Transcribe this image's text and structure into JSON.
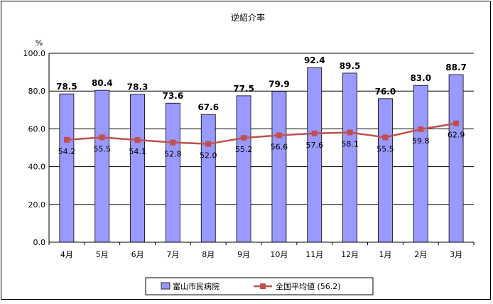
{
  "chart_data": {
    "type": "bar",
    "title": "逆紹介率",
    "ylabel": "%",
    "xlabel": "",
    "ylim": [
      0,
      100
    ],
    "yticks": [
      "0.0",
      "20.0",
      "40.0",
      "60.0",
      "80.0",
      "100.0"
    ],
    "categories": [
      "4月",
      "5月",
      "6月",
      "7月",
      "8月",
      "9月",
      "10月",
      "11月",
      "12月",
      "1月",
      "2月",
      "3月"
    ],
    "series": [
      {
        "name": "富山市民病院",
        "type": "bar",
        "color": "#9999ff",
        "values": [
          78.5,
          80.4,
          78.3,
          73.6,
          67.6,
          77.5,
          79.9,
          92.4,
          89.5,
          76.0,
          83.0,
          88.7
        ],
        "labels": [
          "78.5",
          "80.4",
          "78.3",
          "73.6",
          "67.6",
          "77.5",
          "79.9",
          "92.4",
          "89.5",
          "76.0",
          "83.0",
          "88.7"
        ]
      },
      {
        "name": "全国平均値 (56.2)",
        "type": "line",
        "color": "#c0504d",
        "values": [
          54.2,
          55.5,
          54.1,
          52.8,
          52.0,
          55.2,
          56.6,
          57.6,
          58.1,
          55.5,
          59.8,
          62.9
        ],
        "labels": [
          "54.2",
          "55.5",
          "54.1",
          "52.8",
          "52.0",
          "55.2",
          "56.6",
          "57.6",
          "58.1",
          "55.5",
          "59.8",
          "62.9"
        ]
      }
    ],
    "grid": true,
    "legend": "bottom"
  }
}
